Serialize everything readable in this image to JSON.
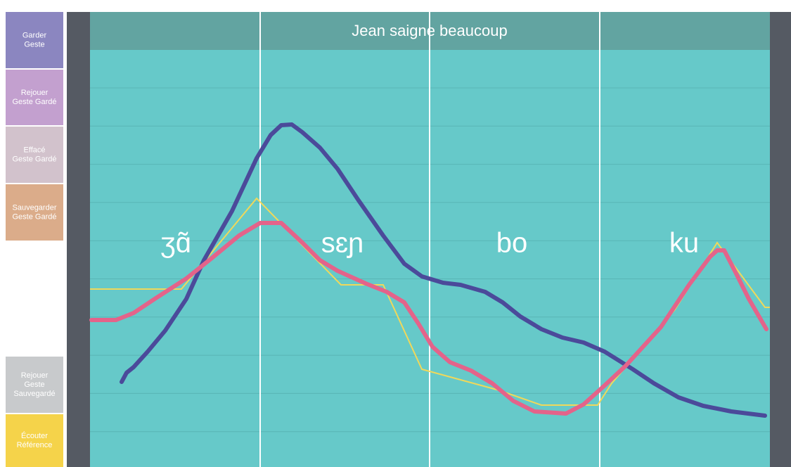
{
  "sidebar": {
    "buttons": [
      {
        "lines": [
          "Garder",
          "Geste"
        ]
      },
      {
        "lines": [
          "Rejouer",
          "Geste Gardé"
        ]
      },
      {
        "lines": [
          "Effacé",
          "Geste Gardé"
        ]
      },
      {
        "lines": [
          "Sauvegarder",
          "Geste Gardé"
        ]
      },
      {
        "lines": [
          "Rejouer",
          "Geste",
          "Sauvegardé"
        ]
      },
      {
        "lines": [
          "Écouter",
          "Référence"
        ]
      }
    ]
  },
  "header": {
    "title": "Jean saigne beaucoup"
  },
  "syllables": [
    "ʒɑ̃",
    "sɛɲ",
    "bo",
    "ku"
  ]
}
